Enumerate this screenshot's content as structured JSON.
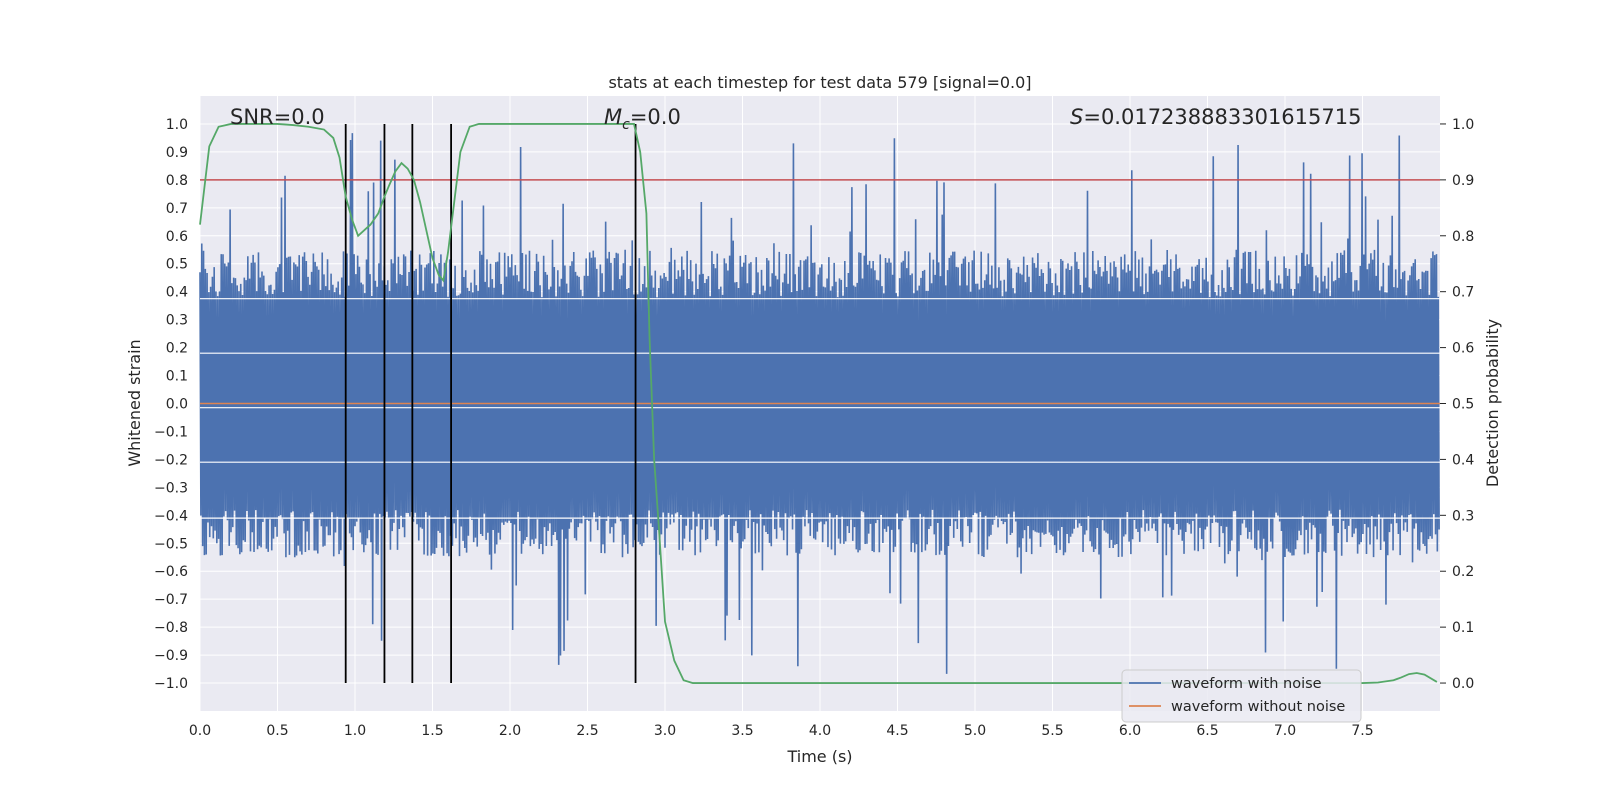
{
  "chart_data": {
    "type": "line",
    "title": "stats at each timestep for test data 579 [signal=0.0]",
    "xlabel": "Time (s)",
    "ylabel": "Whitened strain",
    "y2label": "Detection probability",
    "xlim": [
      0.0,
      8.0
    ],
    "ylim": [
      -1.1,
      1.1
    ],
    "y2lim": [
      -0.05,
      1.05
    ],
    "xticks": [
      "0.0",
      "0.5",
      "1.0",
      "1.5",
      "2.0",
      "2.5",
      "3.0",
      "3.5",
      "4.0",
      "4.5",
      "5.0",
      "5.5",
      "6.0",
      "6.5",
      "7.0",
      "7.5"
    ],
    "yticks": [
      "1.0",
      "0.9",
      "0.8",
      "0.7",
      "0.6",
      "0.5",
      "0.4",
      "0.3",
      "0.2",
      "0.1",
      "0.0",
      "−0.1",
      "−0.2",
      "−0.3",
      "−0.4",
      "−0.5",
      "−0.6",
      "−0.7",
      "−0.8",
      "−0.9",
      "−1.0"
    ],
    "y2ticks": [
      "1.0",
      "0.9",
      "0.8",
      "0.7",
      "0.6",
      "0.5",
      "0.4",
      "0.3",
      "0.2",
      "0.1",
      "0.0"
    ],
    "annotations": {
      "snr": "SNR=0.0",
      "mc_symbol": "M",
      "mc_sub": "c",
      "mc_value": "=0.0",
      "s_symbol": "S",
      "s_value": "=0.017238883301615715"
    },
    "threshold": 0.9,
    "vlines": [
      0.94,
      1.19,
      1.37,
      1.62,
      2.81
    ],
    "probability": {
      "x": [
        0.0,
        0.06,
        0.12,
        0.2,
        0.3,
        0.4,
        0.5,
        0.6,
        0.7,
        0.8,
        0.86,
        0.9,
        0.94,
        0.98,
        1.02,
        1.06,
        1.1,
        1.15,
        1.19,
        1.22,
        1.26,
        1.3,
        1.34,
        1.38,
        1.42,
        1.46,
        1.5,
        1.54,
        1.57,
        1.6,
        1.64,
        1.68,
        1.74,
        1.8,
        1.9,
        2.0,
        2.2,
        2.4,
        2.6,
        2.8,
        2.84,
        2.88,
        2.9,
        2.93,
        2.96,
        3.0,
        3.06,
        3.12,
        3.18,
        3.25,
        3.4,
        4.0,
        5.0,
        6.0,
        6.5,
        7.0,
        7.5,
        7.6,
        7.7,
        7.75,
        7.8,
        7.85,
        7.9,
        7.98
      ],
      "y": [
        0.82,
        0.96,
        0.995,
        1.0,
        1.0,
        1.0,
        1.0,
        0.998,
        0.995,
        0.99,
        0.975,
        0.94,
        0.87,
        0.83,
        0.8,
        0.81,
        0.82,
        0.84,
        0.87,
        0.89,
        0.915,
        0.93,
        0.92,
        0.9,
        0.86,
        0.81,
        0.76,
        0.73,
        0.72,
        0.77,
        0.86,
        0.95,
        0.995,
        1.0,
        1.0,
        1.0,
        1.0,
        1.0,
        1.0,
        1.0,
        0.95,
        0.84,
        0.62,
        0.4,
        0.28,
        0.11,
        0.04,
        0.005,
        0.0,
        0.0,
        0.0,
        0.0,
        0.0,
        0.0,
        0.0,
        0.0,
        0.0,
        0.001,
        0.005,
        0.01,
        0.016,
        0.018,
        0.015,
        0.002
      ]
    },
    "noise_model": {
      "samples": 1400,
      "band_envelope": 0.38,
      "typical_peak": 0.55,
      "max_peak": 0.97,
      "seed": 579
    },
    "series": [
      {
        "name": "waveform with noise",
        "color": "#4c72b0"
      },
      {
        "name": "waveform without noise",
        "color": "#dd8452"
      },
      {
        "name": "detection probability",
        "color": "#55a868"
      },
      {
        "name": "detection threshold",
        "color": "#c44e52"
      }
    ],
    "legend": {
      "placement": "lower-right",
      "entries": [
        "waveform with noise",
        "waveform without noise"
      ]
    }
  }
}
